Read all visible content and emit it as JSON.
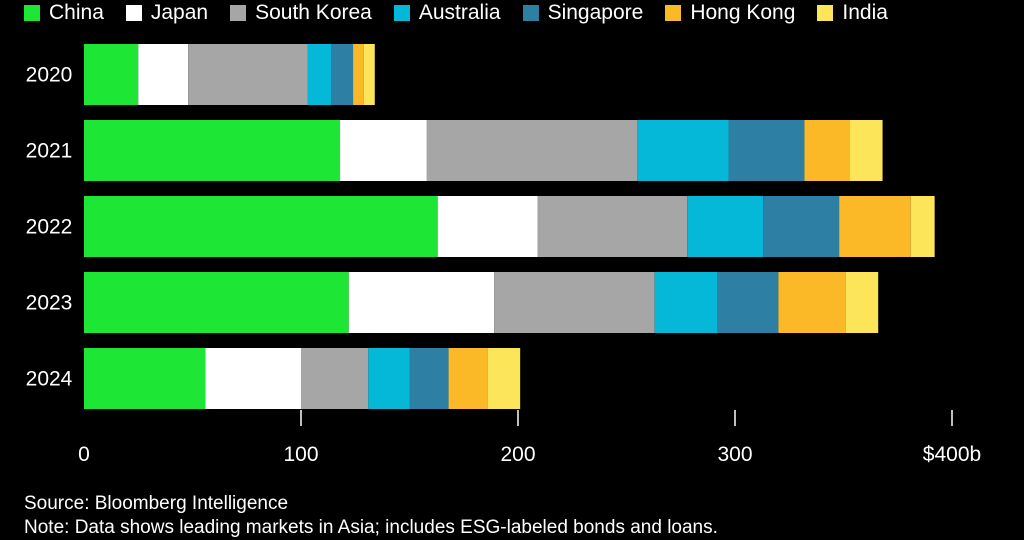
{
  "chart_data": {
    "type": "bar",
    "orientation": "horizontal",
    "stacked": true,
    "categories": [
      "2020",
      "2021",
      "2022",
      "2023",
      "2024"
    ],
    "series": [
      {
        "name": "China",
        "color": "#1ee635",
        "values": [
          25,
          118,
          163,
          122,
          56
        ]
      },
      {
        "name": "Japan",
        "color": "#ffffff",
        "values": [
          23,
          40,
          46,
          67,
          44
        ]
      },
      {
        "name": "South Korea",
        "color": "#a6a6a6",
        "values": [
          55,
          97,
          69,
          74,
          31
        ]
      },
      {
        "name": "Australia",
        "color": "#05b8d8",
        "values": [
          11,
          42,
          35,
          29,
          19
        ]
      },
      {
        "name": "Singapore",
        "color": "#2d7fa3",
        "values": [
          10,
          35,
          35,
          28,
          18
        ]
      },
      {
        "name": "Hong Kong",
        "color": "#fbb928",
        "values": [
          5,
          21,
          33,
          31,
          18
        ]
      },
      {
        "name": "India",
        "color": "#fde55a",
        "values": [
          5,
          15,
          11,
          15,
          15
        ]
      }
    ],
    "x_ticks": [
      "0",
      "100",
      "200",
      "300",
      "$400b"
    ],
    "x_tick_values": [
      0,
      100,
      200,
      300,
      400
    ],
    "xlim": [
      0,
      400
    ],
    "legend": {
      "position": "top"
    },
    "grid": false
  },
  "footer": {
    "source": "Source: Bloomberg Intelligence",
    "note": "Note: Data shows leading markets in Asia; includes ESG-labeled bonds and loans."
  }
}
